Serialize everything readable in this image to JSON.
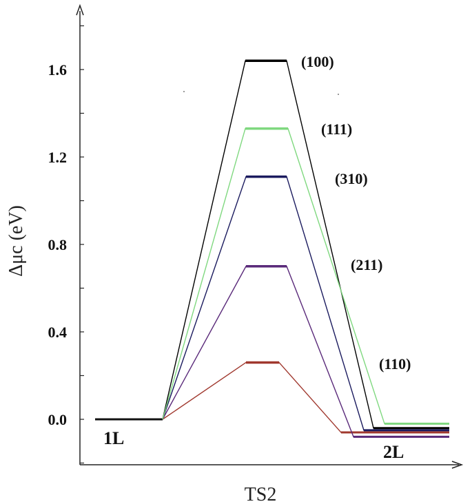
{
  "chart_data": {
    "type": "line",
    "title": "",
    "xlabel": "TS2",
    "ylabel": "Δμc (eV)",
    "ylim": [
      -0.2,
      1.85
    ],
    "yticks": [
      "0.0",
      "0.4",
      "0.8",
      "1.2",
      "1.6"
    ],
    "ytick_values": [
      0.0,
      0.4,
      0.8,
      1.2,
      1.6
    ],
    "grid": false,
    "states": [
      {
        "label": "1L",
        "value": 0.0
      },
      {
        "label": "",
        "value": null
      },
      {
        "label": "2L",
        "value": null
      }
    ],
    "series": [
      {
        "name": "(100)",
        "color": "#000000",
        "values": [
          0.0,
          1.64,
          -0.04
        ]
      },
      {
        "name": "(111)",
        "color": "#7fd87f",
        "values": [
          0.0,
          1.33,
          -0.02
        ]
      },
      {
        "name": "(310)",
        "color": "#1a1a5e",
        "values": [
          0.0,
          1.11,
          -0.05
        ]
      },
      {
        "name": "(211)",
        "color": "#5a2a7a",
        "values": [
          0.0,
          0.7,
          -0.08
        ]
      },
      {
        "name": "(110)",
        "color": "#a0382e",
        "values": [
          0.0,
          0.26,
          -0.06
        ]
      }
    ]
  }
}
